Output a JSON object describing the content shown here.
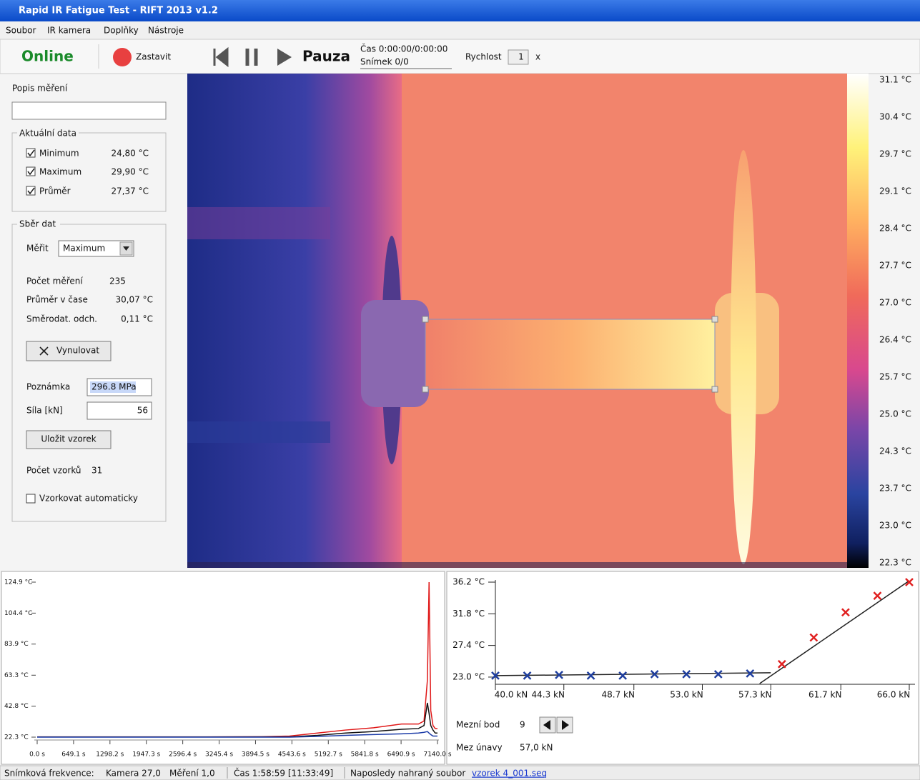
{
  "window": {
    "title": "Rapid IR Fatigue Test - RIFT 2013 v1.2"
  },
  "menu": [
    "Soubor",
    "IR kamera",
    "Doplňky",
    "Nástroje"
  ],
  "toolbar": {
    "status": "Online",
    "stop": "Zastavit",
    "pause": "Pauza",
    "time": "Čas 0:00:00/0:00:00",
    "frame": "Snímek 0/0",
    "speed_label": "Rychlost",
    "speed": 1,
    "speed_unit": "x"
  },
  "left_panel": {
    "description_label": "Popis měření",
    "current_group": "Aktuální data",
    "current": [
      {
        "label": "Minimum",
        "value": "24,80 °C"
      },
      {
        "label": "Maximum",
        "value": "29,90 °C"
      },
      {
        "label": "Průměr",
        "value": "27,37 °C"
      }
    ],
    "collect_group": "Sběr dat",
    "measure_label": "Měřit",
    "measure_mode": "Maximum",
    "stats": [
      {
        "label": "Počet měření",
        "value": 235
      },
      {
        "label": "Průměr v čase",
        "value": "30,07 °C"
      },
      {
        "label": "Směrodat. odch.",
        "value": "0,11 °C"
      }
    ],
    "reset_button": "Vynulovat",
    "note_label": "Poznámka",
    "note": "296.8 MPa",
    "force_label": "Síla [kN]",
    "force": 56,
    "save_button": "Uložit vzorek",
    "sample_count_label": "Počet vzorků",
    "sample_count": 31,
    "auto_sample": "Vzorkovat automaticky"
  },
  "thermal_scale": [
    "31.1 °C",
    "30.4 °C",
    "29.7 °C",
    "29.1 °C",
    "28.4 °C",
    "27.7 °C",
    "27.0 °C",
    "26.4 °C",
    "25.7 °C",
    "25.0 °C",
    "24.3 °C",
    "23.7 °C",
    "23.0 °C",
    "22.3 °C"
  ],
  "temperature_chart": {
    "type": "line",
    "xlim": [
      0,
      7140
    ],
    "ylim": [
      22.3,
      124.9
    ],
    "xticks": [
      {
        "value": 0,
        "label": "0.0 s"
      },
      {
        "value": 649.1,
        "label": "649.1 s"
      },
      {
        "value": 1298.2,
        "label": "1298.2 s"
      },
      {
        "value": 1947.3,
        "label": "1947.3 s"
      },
      {
        "value": 2596.4,
        "label": "2596.4 s"
      },
      {
        "value": 3245.4,
        "label": "3245.4 s"
      },
      {
        "value": 3894.5,
        "label": "3894.5 s"
      },
      {
        "value": 4543.6,
        "label": "4543.6 s"
      },
      {
        "value": 5192.7,
        "label": "5192.7 s"
      },
      {
        "value": 5841.8,
        "label": "5841.8 s"
      },
      {
        "value": 6490.9,
        "label": "6490.9 s"
      },
      {
        "value": 7140,
        "label": "7140.0 s"
      }
    ],
    "yticks": [
      {
        "value": 124.9,
        "label": "124.9 °C"
      },
      {
        "value": 104.4,
        "label": "104.4 °C"
      },
      {
        "value": 83.9,
        "label": "83.9 °C"
      },
      {
        "value": 63.3,
        "label": "63.3 °C"
      },
      {
        "value": 42.8,
        "label": "42.8 °C"
      },
      {
        "value": 22.3,
        "label": "22.3 °C"
      }
    ],
    "x": [
      0,
      1000,
      2000,
      3000,
      4000,
      4500,
      5000,
      5500,
      6000,
      6500,
      6800,
      6900,
      6960,
      6990,
      7020,
      7060,
      7100,
      7140
    ],
    "series": [
      {
        "color": "#e01818",
        "values": [
          22.5,
          22.5,
          22.5,
          22.5,
          22.6,
          23,
          25,
          27,
          28.5,
          31,
          31,
          33,
          60,
          124.9,
          40,
          30,
          28,
          28
        ]
      },
      {
        "color": "#111111",
        "values": [
          22.4,
          22.4,
          22.4,
          22.4,
          22.5,
          22.5,
          23.5,
          25,
          26,
          27.5,
          28,
          30,
          45,
          38,
          30,
          27,
          25,
          25
        ]
      },
      {
        "color": "#1c3ca8",
        "values": [
          22.3,
          22.3,
          22.3,
          22.3,
          22.3,
          22.3,
          22.8,
          23.5,
          24,
          24.5,
          25,
          25.5,
          26,
          25,
          24,
          23,
          23,
          23
        ]
      }
    ]
  },
  "fatigue_chart": {
    "type": "scatter",
    "xlim": [
      40,
      66
    ],
    "ylim": [
      22.0,
      36.2
    ],
    "xticks": [
      {
        "value": 40,
        "label": "40.0 kN"
      },
      {
        "value": 44.3,
        "label": "44.3 kN"
      },
      {
        "value": 48.7,
        "label": "48.7 kN"
      },
      {
        "value": 53,
        "label": "53.0 kN"
      },
      {
        "value": 57.3,
        "label": "57.3 kN"
      },
      {
        "value": 61.7,
        "label": "61.7 kN"
      },
      {
        "value": 66,
        "label": "66.0 kN"
      }
    ],
    "yticks": [
      {
        "value": 23,
        "label": "23.0 °C"
      },
      {
        "value": 27.4,
        "label": "27.4 °C"
      },
      {
        "value": 31.8,
        "label": "31.8 °C"
      },
      {
        "value": 36.2,
        "label": "36.2 °C"
      }
    ],
    "series": [
      {
        "color": "#1f3f9f",
        "x": [
          40,
          42,
          44,
          46,
          48,
          50,
          52,
          54,
          56
        ],
        "values": [
          23.2,
          23.2,
          23.3,
          23.2,
          23.2,
          23.4,
          23.4,
          23.4,
          23.5
        ]
      },
      {
        "color": "#e02020",
        "x": [
          58,
          60,
          62,
          64,
          66
        ],
        "values": [
          24.8,
          28.5,
          32,
          34.3,
          36.2
        ]
      }
    ],
    "fit_lines": [
      {
        "x": [
          40,
          57.3
        ],
        "y": [
          23.2,
          23.6
        ]
      },
      {
        "x": [
          56.6,
          66
        ],
        "y": [
          22.1,
          36.4
        ]
      }
    ]
  },
  "fatigue_result": {
    "limit_point_label": "Mezní bod",
    "limit_point": 9,
    "fatigue_limit_label": "Mez únavy",
    "fatigue_limit": "57,0 kN"
  },
  "status_bar": {
    "frame_rate_label": "Snímková frekvence:",
    "camera": "Kamera 27,0",
    "measurement": "Měření 1,0",
    "time": "Čas 1:58:59 [11:33:49]",
    "last_file_label": "Naposledy nahraný soubor",
    "last_file": "vzorek 4_001.seq"
  }
}
